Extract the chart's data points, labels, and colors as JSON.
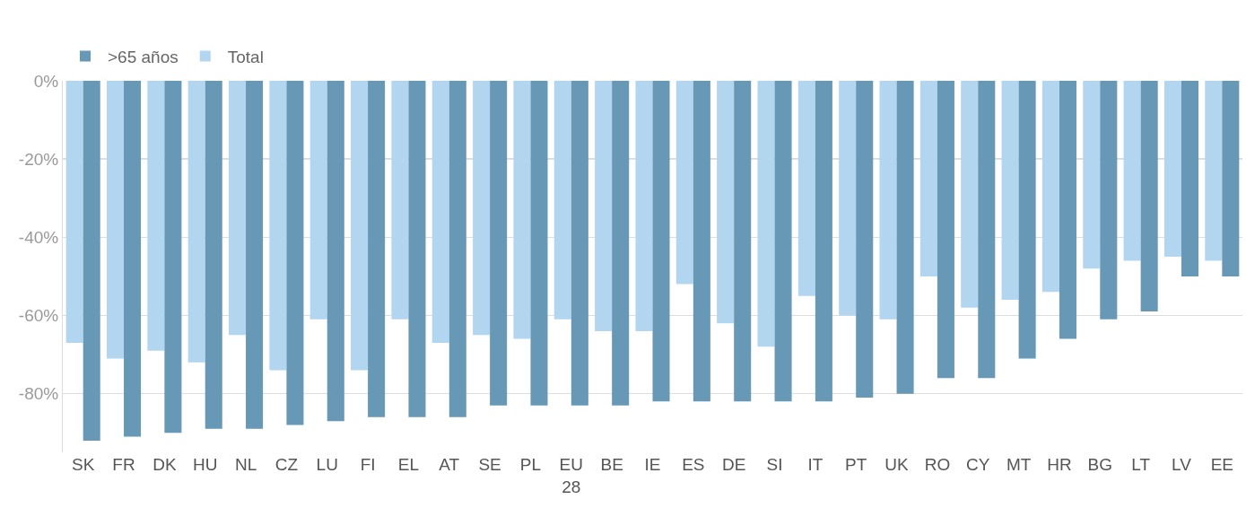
{
  "chart_data": {
    "type": "bar",
    "categories": [
      "SK",
      "FR",
      "DK",
      "HU",
      "NL",
      "CZ",
      "LU",
      "FI",
      "EL",
      "AT",
      "SE",
      "PL",
      "EU 28",
      "BE",
      "IE",
      "ES",
      "DE",
      "SI",
      "IT",
      "PT",
      "UK",
      "RO",
      "CY",
      "MT",
      "HR",
      "BG",
      "LT",
      "LV",
      "EE"
    ],
    "series": [
      {
        "name": "Total",
        "color": "#b2d6f0",
        "values": [
          -67,
          -71,
          -69,
          -72,
          -65,
          -74,
          -61,
          -74,
          -61,
          -67,
          -65,
          -66,
          -61,
          -64,
          -64,
          -52,
          -62,
          -68,
          -55,
          -60,
          -61,
          -50,
          -58,
          -56,
          -54,
          -48,
          -46,
          -45,
          -46
        ]
      },
      {
        "name": ">65 años",
        "color": "#6798b5",
        "values": [
          -92,
          -91,
          -90,
          -89,
          -89,
          -88,
          -87,
          -86,
          -86,
          -86,
          -83,
          -83,
          -83,
          -83,
          -82,
          -82,
          -82,
          -82,
          -82,
          -81,
          -80,
          -76,
          -76,
          -71,
          -66,
          -61,
          -59,
          -50,
          -50
        ]
      }
    ],
    "ylim": [
      -95,
      0
    ],
    "yticks": [
      {
        "value": 0,
        "label": "0%"
      },
      {
        "value": -20,
        "label": "-20%"
      },
      {
        "value": -40,
        "label": "-40%"
      },
      {
        "value": -60,
        "label": "-60%"
      },
      {
        "value": -80,
        "label": "-80%"
      }
    ],
    "grid": "y",
    "legend": "top left"
  }
}
